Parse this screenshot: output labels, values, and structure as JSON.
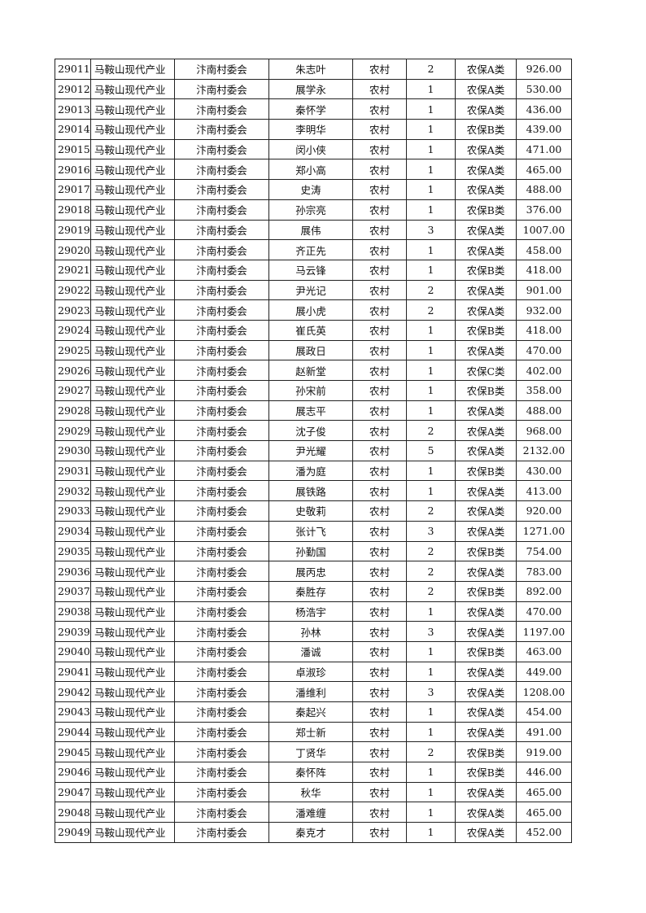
{
  "table": {
    "unit": "马鞍山现代产业",
    "committee": "汴南村委会",
    "area": "农村",
    "rows": [
      [
        "29011",
        "朱志叶",
        "2",
        "农保A类",
        "926.00"
      ],
      [
        "29012",
        "展学永",
        "1",
        "农保A类",
        "530.00"
      ],
      [
        "29013",
        "秦怀学",
        "1",
        "农保A类",
        "436.00"
      ],
      [
        "29014",
        "李明华",
        "1",
        "农保B类",
        "439.00"
      ],
      [
        "29015",
        "闵小侠",
        "1",
        "农保A类",
        "471.00"
      ],
      [
        "29016",
        "郑小高",
        "1",
        "农保A类",
        "465.00"
      ],
      [
        "29017",
        "史涛",
        "1",
        "农保A类",
        "488.00"
      ],
      [
        "29018",
        "孙宗亮",
        "1",
        "农保B类",
        "376.00"
      ],
      [
        "29019",
        "展伟",
        "3",
        "农保A类",
        "1007.00"
      ],
      [
        "29020",
        "齐正先",
        "1",
        "农保A类",
        "458.00"
      ],
      [
        "29021",
        "马云锋",
        "1",
        "农保B类",
        "418.00"
      ],
      [
        "29022",
        "尹光记",
        "2",
        "农保A类",
        "901.00"
      ],
      [
        "29023",
        "展小虎",
        "2",
        "农保A类",
        "932.00"
      ],
      [
        "29024",
        "崔氏英",
        "1",
        "农保B类",
        "418.00"
      ],
      [
        "29025",
        "展政日",
        "1",
        "农保A类",
        "470.00"
      ],
      [
        "29026",
        "赵新堂",
        "1",
        "农保C类",
        "402.00"
      ],
      [
        "29027",
        "孙宋前",
        "1",
        "农保B类",
        "358.00"
      ],
      [
        "29028",
        "展志平",
        "1",
        "农保A类",
        "488.00"
      ],
      [
        "29029",
        "沈子俊",
        "2",
        "农保A类",
        "968.00"
      ],
      [
        "29030",
        "尹光耀",
        "5",
        "农保A类",
        "2132.00"
      ],
      [
        "29031",
        "潘为庭",
        "1",
        "农保B类",
        "430.00"
      ],
      [
        "29032",
        "展铁路",
        "1",
        "农保A类",
        "413.00"
      ],
      [
        "29033",
        "史敬莉",
        "2",
        "农保A类",
        "920.00"
      ],
      [
        "29034",
        "张计飞",
        "3",
        "农保A类",
        "1271.00"
      ],
      [
        "29035",
        "孙勤国",
        "2",
        "农保B类",
        "754.00"
      ],
      [
        "29036",
        "展丙忠",
        "2",
        "农保A类",
        "783.00"
      ],
      [
        "29037",
        "秦胜存",
        "2",
        "农保B类",
        "892.00"
      ],
      [
        "29038",
        "杨浩宇",
        "1",
        "农保A类",
        "470.00"
      ],
      [
        "29039",
        "孙林",
        "3",
        "农保A类",
        "1197.00"
      ],
      [
        "29040",
        "潘诚",
        "1",
        "农保B类",
        "463.00"
      ],
      [
        "29041",
        "卓淑珍",
        "1",
        "农保A类",
        "449.00"
      ],
      [
        "29042",
        "潘维利",
        "3",
        "农保A类",
        "1208.00"
      ],
      [
        "29043",
        "秦起兴",
        "1",
        "农保A类",
        "454.00"
      ],
      [
        "29044",
        "郑士新",
        "1",
        "农保A类",
        "491.00"
      ],
      [
        "29045",
        "丁贤华",
        "2",
        "农保B类",
        "919.00"
      ],
      [
        "29046",
        "秦怀阵",
        "1",
        "农保B类",
        "446.00"
      ],
      [
        "29047",
        "秋华",
        "1",
        "农保A类",
        "465.00"
      ],
      [
        "29048",
        "潘难缠",
        "1",
        "农保A类",
        "465.00"
      ],
      [
        "29049",
        "秦克才",
        "1",
        "农保A类",
        "452.00"
      ]
    ]
  }
}
